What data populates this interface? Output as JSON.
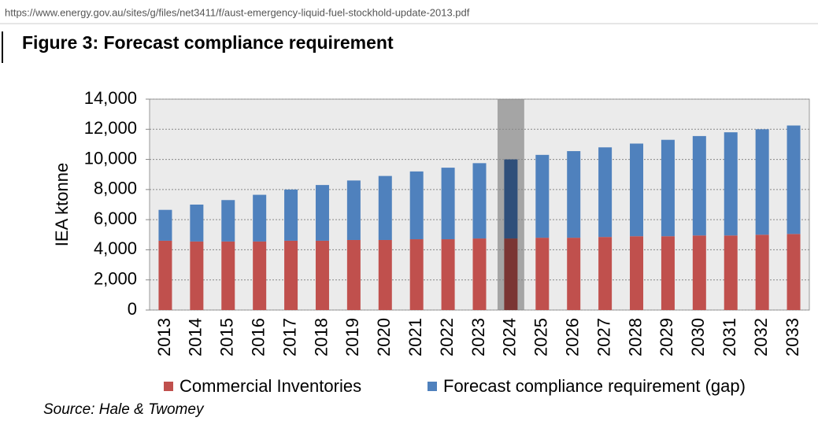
{
  "url": "https://www.energy.gov.au/sites/g/files/net3411/f/aust-emergency-liquid-fuel-stockhold-update-2013.pdf",
  "chart_data": {
    "type": "stacked_bar",
    "title": "Figure 3: Forecast compliance requirement",
    "y_label": "IEA ktonne",
    "source": "Source: Hale & Twomey",
    "categories": [
      "2013",
      "2014",
      "2015",
      "2016",
      "2017",
      "2018",
      "2019",
      "2020",
      "2021",
      "2022",
      "2023",
      "2024",
      "2025",
      "2026",
      "2027",
      "2028",
      "2029",
      "2030",
      "2031",
      "2032",
      "2033"
    ],
    "series": [
      {
        "name": "Commercial Inventories",
        "color": "#c0504d",
        "highlight_color": "#7a3533",
        "values": [
          4600,
          4550,
          4550,
          4550,
          4600,
          4600,
          4650,
          4650,
          4700,
          4700,
          4750,
          4750,
          4800,
          4800,
          4850,
          4900,
          4900,
          4950,
          4950,
          5000,
          5050
        ]
      },
      {
        "name": "Forecast compliance requirement (gap)",
        "color": "#4f81bd",
        "highlight_color": "#2f4f7a",
        "values": [
          2050,
          2450,
          2750,
          3100,
          3400,
          3700,
          3950,
          4250,
          4500,
          4750,
          5000,
          5250,
          5500,
          5750,
          5950,
          6150,
          6400,
          6600,
          6850,
          7000,
          7200
        ]
      }
    ],
    "highlight": "2024",
    "ylim": [
      0,
      14000
    ],
    "yticks": [
      0,
      {
        "value": 2000,
        "label": "2,000"
      },
      {
        "value": 4000,
        "label": "4,000"
      },
      {
        "value": 6000,
        "label": "6,000"
      },
      {
        "value": 8000,
        "label": "8,000"
      },
      {
        "value": 10000,
        "label": "10,000"
      },
      {
        "value": 12000,
        "label": "12,000"
      },
      {
        "value": 14000,
        "label": "14,000"
      }
    ],
    "grid": true,
    "legend": "bottom"
  }
}
